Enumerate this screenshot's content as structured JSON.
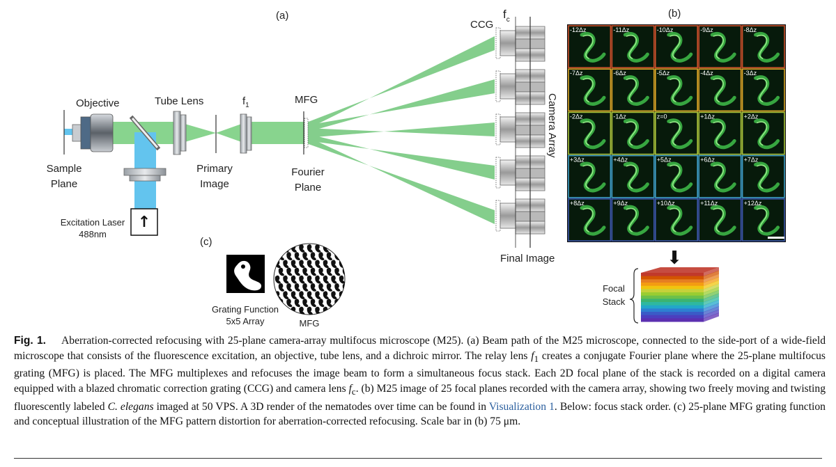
{
  "panels": {
    "a": "(a)",
    "b": "(b)",
    "c": "(c)"
  },
  "labels": {
    "objective": "Objective",
    "tube_lens": "Tube Lens",
    "f1": "f",
    "f1_sub": "1",
    "mfg": "MFG",
    "ccg": "CCG",
    "fc": "f",
    "fc_sub": "c",
    "camera_array": "Camera Array",
    "sample_plane": [
      "Sample",
      "Plane"
    ],
    "primary_image": [
      "Primary",
      "Image"
    ],
    "fourier_plane": [
      "Fourier",
      "Plane"
    ],
    "excitation_laser": [
      "Excitation Laser",
      "488nm"
    ],
    "final_image": "Final Image",
    "grating_function": [
      "Grating Function",
      "5x5 Array"
    ],
    "mfg_small": "MFG",
    "focal_stack": [
      "Focal",
      "Stack"
    ],
    "arrow_up": "↑",
    "arrow_down": "⬇"
  },
  "grid": {
    "rows": [
      {
        "color": "#c8502a",
        "tiles": [
          "-12Δz",
          "-11Δz",
          "-10Δz",
          "-9Δz",
          "-8Δz"
        ]
      },
      {
        "color": "#d9a526",
        "tiles": [
          "-7Δz",
          "-6Δz",
          "-5Δz",
          "-4Δz",
          "-3Δz"
        ]
      },
      {
        "color": "#a8c43a",
        "tiles": [
          "-2Δz",
          "-1Δz",
          "z=0",
          "+1Δz",
          "+2Δz"
        ]
      },
      {
        "color": "#3d9ec6",
        "tiles": [
          "+3Δz",
          "+4Δz",
          "+5Δz",
          "+6Δz",
          "+7Δz"
        ]
      },
      {
        "color": "#3a56a8",
        "tiles": [
          "+8Δz",
          "+9Δz",
          "+10Δz",
          "+11Δz",
          "+12Δz"
        ]
      }
    ]
  },
  "stack_colors": [
    "#c0392b",
    "#d35400",
    "#e67e22",
    "#f39c12",
    "#f1c40f",
    "#c7d13a",
    "#9acd32",
    "#6cc04a",
    "#3cb371",
    "#2eb8a0",
    "#22a7c9",
    "#2d7fd1",
    "#3a5bc7",
    "#4b3fbf",
    "#5b2fb0"
  ],
  "caption": {
    "fig_label": "Fig. 1.",
    "p1": "Aberration-corrected refocusing with 25-plane camera-array multifocus microscope (M25). (a) Beam path of the M25 microscope, connected to the side-port of a wide-field microscope that consists of the fluorescence excitation, an objective, tube lens, and a dichroic mirror. The relay lens ",
    "f1_sym": "f",
    "f1_sub": "1",
    "p2": " creates a conjugate Fourier plane where the 25-plane multifocus grating (MFG) is placed. The MFG multiplexes and refocuses the image beam to form a simultaneous focus stack. Each 2D focal plane of the stack is recorded on a digital camera equipped with a blazed chromatic correction grating (CCG) and camera lens ",
    "fc_sym": "f",
    "fc_sub": "c",
    "p3": ". (b) M25 image of 25 focal planes recorded with the camera array, showing two freely moving and twisting fluorescently labeled ",
    "species": "C. elegans",
    "p4": " imaged at 50 VPS. A 3D render of the nematodes over time can be found in ",
    "link": "Visualization 1",
    "p5": ". Below: focus stack order. (c) 25-plane MFG grating function and conceptual illustration of the MFG pattern distortion for aberration-corrected refocusing. Scale bar in (b) 75 μm."
  }
}
